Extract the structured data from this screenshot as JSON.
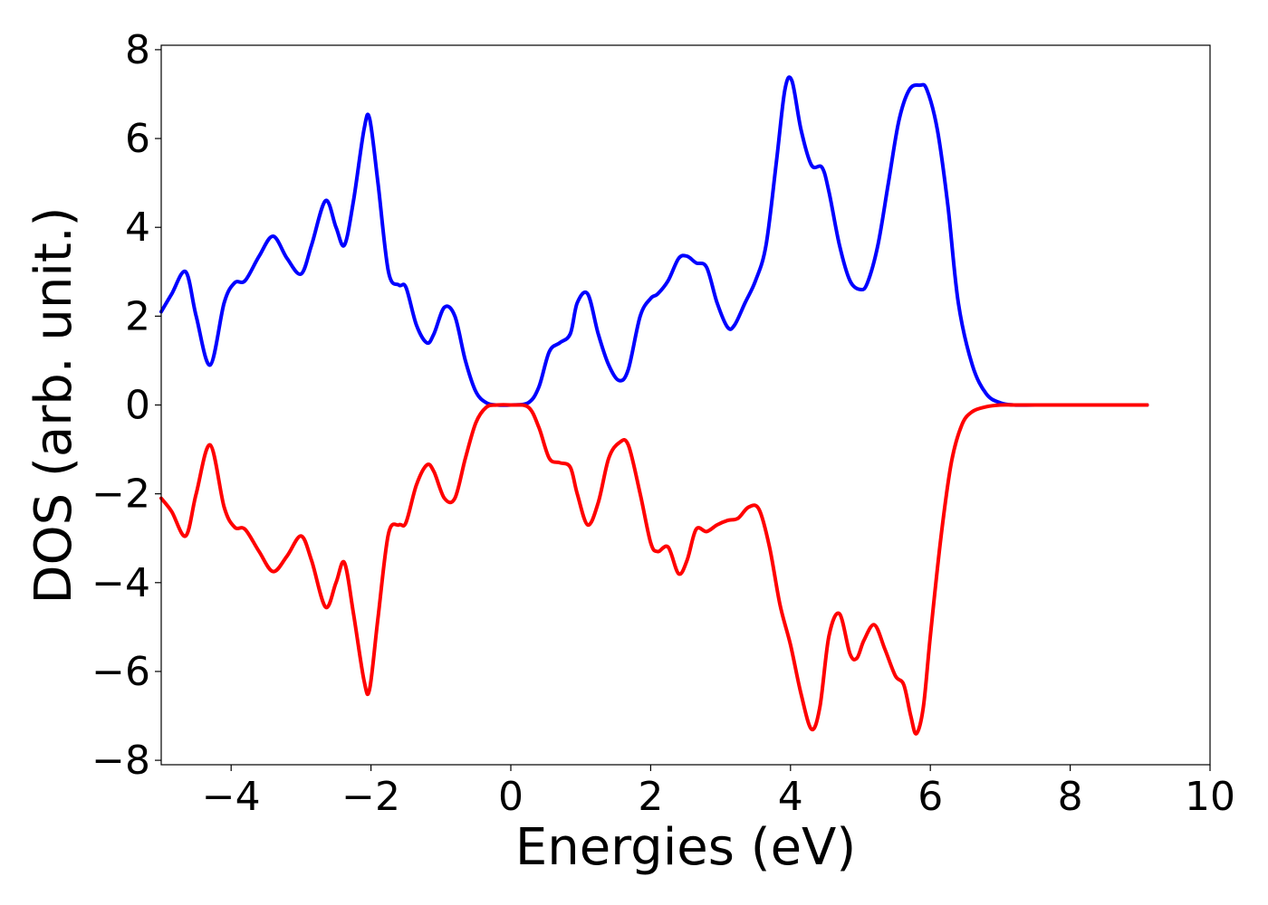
{
  "chart_data": {
    "type": "line",
    "title": "",
    "xlabel": "Energies (eV)",
    "ylabel": "DOS (arb. unit.)",
    "xlim": [
      -5,
      10
    ],
    "ylim": [
      -8.1,
      8.1
    ],
    "x_ticks": [
      -4,
      -2,
      0,
      2,
      4,
      6,
      8,
      10
    ],
    "x_tick_labels": [
      "−4",
      "−2",
      "0",
      "2",
      "4",
      "6",
      "8",
      "10"
    ],
    "y_ticks": [
      -8,
      -6,
      -4,
      -2,
      0,
      2,
      4,
      6,
      8
    ],
    "y_tick_labels": [
      "−8",
      "−6",
      "−4",
      "−2",
      "0",
      "2",
      "4",
      "6",
      "8"
    ],
    "grid": false,
    "legend": "none",
    "series": [
      {
        "color": "#0000ff",
        "x": [
          -5.0,
          -4.85,
          -4.65,
          -4.5,
          -4.3,
          -4.1,
          -3.95,
          -3.8,
          -3.6,
          -3.4,
          -3.2,
          -3.0,
          -2.85,
          -2.65,
          -2.5,
          -2.38,
          -2.25,
          -2.1,
          -2.02,
          -1.9,
          -1.75,
          -1.6,
          -1.5,
          -1.35,
          -1.2,
          -1.1,
          -0.95,
          -0.8,
          -0.65,
          -0.5,
          -0.35,
          -0.2,
          0.0,
          0.25,
          0.4,
          0.55,
          0.7,
          0.85,
          0.95,
          1.1,
          1.25,
          1.4,
          1.55,
          1.68,
          1.85,
          2.0,
          2.1,
          2.25,
          2.4,
          2.52,
          2.65,
          2.8,
          2.95,
          3.1,
          3.2,
          3.35,
          3.5,
          3.65,
          3.8,
          3.92,
          4.02,
          4.15,
          4.3,
          4.45,
          4.55,
          4.7,
          4.85,
          5.0,
          5.1,
          5.25,
          5.4,
          5.55,
          5.7,
          5.85,
          5.95,
          6.1,
          6.25,
          6.4,
          6.6,
          6.8,
          7.0,
          7.2,
          7.5,
          8.0,
          9.1
        ],
        "y": [
          2.1,
          2.5,
          3.0,
          2.0,
          0.9,
          2.3,
          2.75,
          2.8,
          3.35,
          3.8,
          3.3,
          2.95,
          3.6,
          4.6,
          4.0,
          3.6,
          4.6,
          6.2,
          6.45,
          5.0,
          3.0,
          2.7,
          2.65,
          1.8,
          1.4,
          1.6,
          2.2,
          2.0,
          1.0,
          0.3,
          0.05,
          0.0,
          0.0,
          0.05,
          0.4,
          1.2,
          1.4,
          1.6,
          2.3,
          2.5,
          1.6,
          0.9,
          0.55,
          0.8,
          2.0,
          2.4,
          2.5,
          2.8,
          3.3,
          3.35,
          3.2,
          3.1,
          2.3,
          1.75,
          1.8,
          2.3,
          2.8,
          3.6,
          5.5,
          7.1,
          7.3,
          6.2,
          5.4,
          5.35,
          4.8,
          3.6,
          2.8,
          2.6,
          2.75,
          3.6,
          5.0,
          6.4,
          7.1,
          7.2,
          7.1,
          6.2,
          4.5,
          2.3,
          0.9,
          0.25,
          0.05,
          0.0,
          0.0,
          0.0,
          0.0
        ]
      },
      {
        "color": "#ff0000",
        "x": [
          -5.0,
          -4.85,
          -4.65,
          -4.5,
          -4.3,
          -4.1,
          -3.95,
          -3.8,
          -3.6,
          -3.4,
          -3.2,
          -3.0,
          -2.85,
          -2.65,
          -2.5,
          -2.38,
          -2.25,
          -2.1,
          -2.02,
          -1.9,
          -1.75,
          -1.6,
          -1.5,
          -1.35,
          -1.2,
          -1.1,
          -0.95,
          -0.8,
          -0.65,
          -0.5,
          -0.35,
          -0.2,
          0.0,
          0.25,
          0.4,
          0.55,
          0.7,
          0.85,
          0.95,
          1.1,
          1.25,
          1.4,
          1.55,
          1.68,
          1.85,
          2.0,
          2.1,
          2.25,
          2.4,
          2.52,
          2.65,
          2.8,
          2.95,
          3.1,
          3.25,
          3.4,
          3.55,
          3.7,
          3.85,
          4.0,
          4.15,
          4.3,
          4.42,
          4.55,
          4.7,
          4.85,
          4.95,
          5.05,
          5.2,
          5.35,
          5.5,
          5.62,
          5.72,
          5.8,
          5.9,
          6.0,
          6.15,
          6.3,
          6.45,
          6.6,
          6.8,
          7.0,
          7.2,
          7.5,
          8.0,
          9.1
        ],
        "y": [
          -2.1,
          -2.4,
          -2.95,
          -2.0,
          -0.9,
          -2.3,
          -2.75,
          -2.8,
          -3.3,
          -3.75,
          -3.4,
          -2.95,
          -3.5,
          -4.55,
          -4.0,
          -3.55,
          -4.7,
          -6.2,
          -6.4,
          -4.8,
          -2.9,
          -2.7,
          -2.65,
          -1.8,
          -1.35,
          -1.5,
          -2.1,
          -2.1,
          -1.2,
          -0.4,
          -0.05,
          0.0,
          0.0,
          -0.05,
          -0.5,
          -1.2,
          -1.3,
          -1.4,
          -2.0,
          -2.7,
          -2.2,
          -1.2,
          -0.85,
          -0.9,
          -2.0,
          -3.1,
          -3.3,
          -3.2,
          -3.8,
          -3.5,
          -2.8,
          -2.85,
          -2.7,
          -2.6,
          -2.55,
          -2.3,
          -2.35,
          -3.2,
          -4.5,
          -5.4,
          -6.5,
          -7.3,
          -6.8,
          -5.2,
          -4.7,
          -5.6,
          -5.7,
          -5.3,
          -4.95,
          -5.5,
          -6.1,
          -6.3,
          -7.0,
          -7.4,
          -6.8,
          -5.2,
          -3.0,
          -1.3,
          -0.45,
          -0.15,
          -0.04,
          0.0,
          0.0,
          0.0,
          0.0,
          0.0
        ]
      }
    ]
  }
}
